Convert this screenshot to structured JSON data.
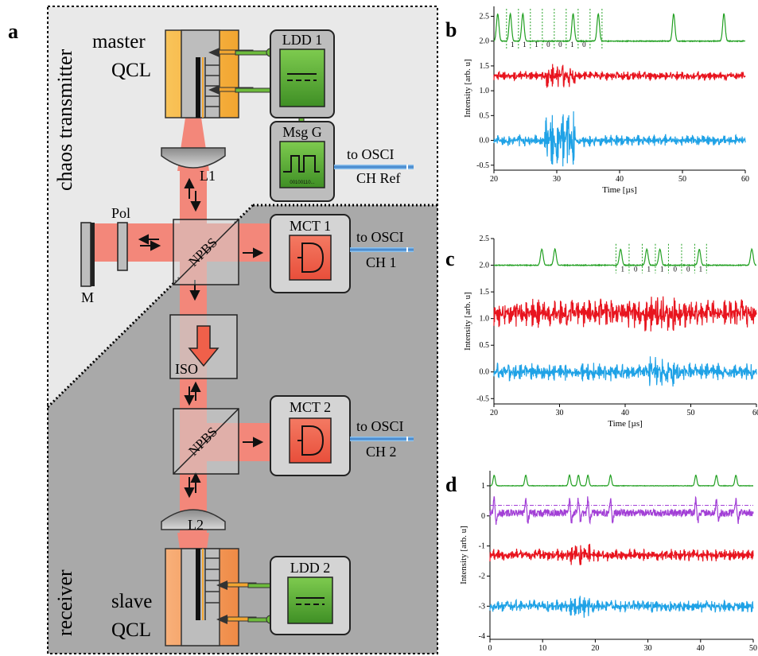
{
  "schematic": {
    "panel_label": "a",
    "transmitter_label": "chaos transmitter",
    "receiver_label": "receiver",
    "master_qcl": [
      "master",
      "QCL"
    ],
    "slave_qcl": [
      "slave",
      "QCL"
    ],
    "ldd1": "LDD 1",
    "ldd2": "LDD 2",
    "msg_gen": "Msg G",
    "msg_bits": "00100110...",
    "mct1": "MCT 1",
    "mct2": "MCT 2",
    "lens1": "L1",
    "lens2": "L2",
    "npbs": "NPBS",
    "iso": "ISO",
    "pol": "Pol",
    "mirror": "M",
    "osci": "to OSCI",
    "ch_ref": "CH Ref",
    "ch1": "CH 1",
    "ch2": "CH 2"
  },
  "colors": {
    "beam": "#f3877a",
    "master": "#f7b040",
    "slave": "#f39a55",
    "ldd": "#4aa02a",
    "detector": "#f0604a",
    "green": "#22a022",
    "red": "#e8141e",
    "blue": "#1fa2e6",
    "purple": "#a23fd6",
    "bg_transmitter": "#e9e9e9",
    "bg_receiver": "#a9a9a9"
  },
  "chart_data": [
    {
      "panel": "b",
      "type": "line",
      "xlabel": "Time [µs]",
      "ylabel": "Intensity [arb. u]",
      "xlim": [
        20,
        60
      ],
      "ylim": [
        -0.6,
        2.7
      ],
      "xticks": [
        20,
        30,
        40,
        50,
        60
      ],
      "yticks": [
        -0.5,
        0.0,
        0.5,
        1.0,
        1.5,
        2.0,
        2.5
      ],
      "ytick_labels": [
        "-0.5",
        "0.0",
        "0.5",
        "1.0",
        "1.5",
        "2.0",
        "2.5"
      ],
      "bits": [
        "1",
        "1",
        "1",
        "0",
        "0",
        "1",
        "0"
      ],
      "series": [
        {
          "color": "green",
          "baseline": 2.0,
          "peak_height": 0.55,
          "peaks": [
            20.6,
            22.6,
            24.6,
            32.6,
            36.6,
            48.6,
            56.6
          ]
        },
        {
          "color": "red",
          "baseline": 1.3,
          "amplitude": 0.1,
          "burst": [
            28,
            33
          ],
          "burst_amplitude": 0.25
        },
        {
          "color": "blue",
          "baseline": 0.0,
          "amplitude": 0.12,
          "burst": [
            28,
            33
          ],
          "burst_amplitude": 0.6
        }
      ],
      "bit_slots": [
        22.0,
        23.9,
        25.8,
        27.7,
        29.6,
        31.5,
        33.4,
        35.3,
        37.2
      ]
    },
    {
      "panel": "c",
      "type": "line",
      "xlabel": "Time [µs]",
      "ylabel": "Intensity [arb. u]",
      "xlim": [
        20,
        60
      ],
      "ylim": [
        -0.6,
        2.5
      ],
      "xticks": [
        20,
        30,
        40,
        50,
        60
      ],
      "yticks": [
        -0.5,
        0.0,
        0.5,
        1.0,
        1.5,
        2.0,
        2.5
      ],
      "ytick_labels": [
        "-0.5",
        "0.0",
        "0.5",
        "1.0",
        "1.5",
        "2.0",
        "2.5"
      ],
      "bits": [
        "1",
        "0",
        "1",
        "1",
        "0",
        "0",
        "1"
      ],
      "series": [
        {
          "color": "green",
          "baseline": 2.0,
          "peak_height": 0.3,
          "peaks": [
            27.3,
            29.3,
            39.3,
            43.3,
            45.3,
            51.3,
            59.3
          ]
        },
        {
          "color": "red",
          "baseline": 1.1,
          "amplitude": 0.28,
          "burst": [
            43,
            48
          ],
          "burst_amplitude": 0.4
        },
        {
          "color": "blue",
          "baseline": 0.0,
          "amplitude": 0.18,
          "burst": [
            43,
            48
          ],
          "burst_amplitude": 0.3
        }
      ],
      "bit_slots": [
        38.6,
        40.6,
        42.6,
        44.6,
        46.6,
        48.6,
        50.6,
        52.4
      ]
    },
    {
      "panel": "d",
      "type": "line",
      "xlabel": "Time [µs]",
      "ylabel": "Intensity [arb. u]",
      "xlim": [
        0,
        50
      ],
      "ylim": [
        -4.1,
        1.5
      ],
      "xticks": [
        0,
        10,
        20,
        30,
        40,
        50
      ],
      "yticks": [
        -4,
        -3,
        -2,
        -1,
        0,
        1
      ],
      "ytick_labels": [
        "-4",
        "-3",
        "-2",
        "-1",
        "0",
        "1"
      ],
      "threshold": 0.35,
      "series": [
        {
          "color": "green",
          "baseline": 1.0,
          "peak_height": 0.35,
          "peaks": [
            0.8,
            6.8,
            15.1,
            16.8,
            18.6,
            22.9,
            39.1,
            43.0,
            46.7
          ]
        },
        {
          "color": "purple",
          "baseline": 0.1,
          "amplitude": 0.12,
          "spikes": [
            0.8,
            6.8,
            15.1,
            16.8,
            18.6,
            22.9,
            39.1,
            43.0,
            46.7
          ]
        },
        {
          "color": "red",
          "baseline": -1.3,
          "amplitude": 0.22,
          "burst": [
            15,
            19
          ],
          "burst_amplitude": 0.4
        },
        {
          "color": "blue",
          "baseline": -3.0,
          "amplitude": 0.22,
          "burst": [
            15,
            19
          ],
          "burst_amplitude": 0.4
        }
      ]
    }
  ]
}
